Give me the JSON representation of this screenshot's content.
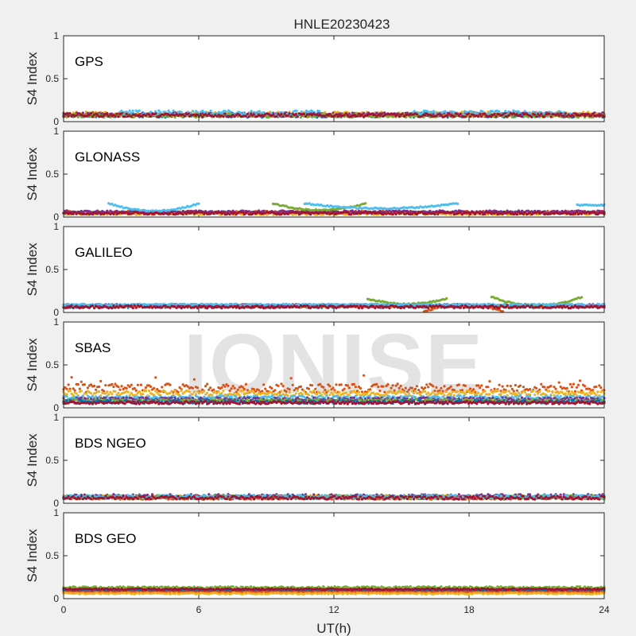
{
  "chart_data": {
    "type": "scatter",
    "title": "HNLE20230423",
    "xlabel": "UT(h)",
    "ylabel": "S4 Index",
    "xlim": [
      0,
      24
    ],
    "ylim": [
      0,
      1
    ],
    "xticks": [
      "0",
      "6",
      "12",
      "18",
      "24"
    ],
    "yticks": [
      "0",
      "0.5",
      "1"
    ],
    "watermark": "IONISE",
    "grid": false,
    "panels": [
      {
        "label": "GPS",
        "series": [
          {
            "color": "#0072BD",
            "segments": [
              {
                "x0": 0,
                "x1": 24,
                "y": 0.07,
                "amp": 0.02
              }
            ]
          },
          {
            "color": "#D95319",
            "segments": [
              {
                "x0": 0,
                "x1": 24,
                "y": 0.08,
                "amp": 0.02
              }
            ]
          },
          {
            "color": "#EDB120",
            "segments": [
              {
                "x0": 0,
                "x1": 24,
                "y": 0.09,
                "amp": 0.025
              }
            ]
          },
          {
            "color": "#7E2F8E",
            "segments": [
              {
                "x0": 0,
                "x1": 24,
                "y": 0.085,
                "amp": 0.02
              }
            ]
          },
          {
            "color": "#77AC30",
            "segments": [
              {
                "x0": 0,
                "x1": 24,
                "y": 0.07,
                "amp": 0.02
              }
            ]
          },
          {
            "color": "#4DBEEE",
            "segments": [
              {
                "x0": 2.5,
                "x1": 11.5,
                "y": 0.1,
                "amp": 0.03
              },
              {
                "x0": 15.5,
                "x1": 22.5,
                "y": 0.1,
                "amp": 0.03
              }
            ]
          },
          {
            "color": "#A2142F",
            "segments": [
              {
                "x0": 0,
                "x1": 24,
                "y": 0.075,
                "amp": 0.02
              }
            ]
          }
        ]
      },
      {
        "label": "GLONASS",
        "series": [
          {
            "color": "#0072BD",
            "segments": [
              {
                "x0": 0,
                "x1": 24,
                "y": 0.05,
                "amp": 0.015
              }
            ]
          },
          {
            "color": "#D95319",
            "segments": [
              {
                "x0": 0,
                "x1": 24,
                "y": 0.055,
                "amp": 0.015
              }
            ]
          },
          {
            "color": "#EDB120",
            "segments": [
              {
                "x0": 0,
                "x1": 24,
                "y": 0.04,
                "amp": 0.015
              }
            ]
          },
          {
            "color": "#7E2F8E",
            "segments": [
              {
                "x0": 0,
                "x1": 24,
                "y": 0.06,
                "amp": 0.015
              }
            ]
          },
          {
            "color": "#77AC30",
            "segments": [
              {
                "x0": 9.3,
                "x1": 13.4,
                "y": 0.08,
                "arc": 0.08
              }
            ]
          },
          {
            "color": "#4DBEEE",
            "segments": [
              {
                "x0": 2.0,
                "x1": 6.0,
                "y": 0.07,
                "arc": 0.09
              },
              {
                "x0": 10.7,
                "x1": 17.5,
                "y": 0.1,
                "arc": 0.06
              },
              {
                "x0": 22.8,
                "x1": 24,
                "y": 0.14,
                "arc": 0.0
              }
            ]
          },
          {
            "color": "#A2142F",
            "segments": [
              {
                "x0": 0,
                "x1": 24,
                "y": 0.045,
                "amp": 0.015
              }
            ]
          }
        ]
      },
      {
        "label": "GALILEO",
        "series": [
          {
            "color": "#0072BD",
            "segments": [
              {
                "x0": 0,
                "x1": 24,
                "y": 0.07,
                "amp": 0.015
              }
            ]
          },
          {
            "color": "#D95319",
            "segments": [
              {
                "x0": 0,
                "x1": 24,
                "y": 0.08,
                "amp": 0.015
              },
              {
                "x0": 16,
                "x1": 19.5,
                "y": 0.09,
                "arc": -0.08
              }
            ]
          },
          {
            "color": "#EDB120",
            "segments": [
              {
                "x0": 0,
                "x1": 24,
                "y": 0.075,
                "amp": 0.015
              }
            ]
          },
          {
            "color": "#7E2F8E",
            "segments": [
              {
                "x0": 0,
                "x1": 24,
                "y": 0.08,
                "amp": 0.015
              }
            ]
          },
          {
            "color": "#77AC30",
            "segments": [
              {
                "x0": 13.5,
                "x1": 17.0,
                "y": 0.1,
                "arc": 0.06
              },
              {
                "x0": 19.0,
                "x1": 23.0,
                "y": 0.08,
                "arc": 0.1
              }
            ]
          },
          {
            "color": "#4DBEEE",
            "segments": [
              {
                "x0": 0,
                "x1": 24,
                "y": 0.09,
                "amp": 0.01
              }
            ]
          },
          {
            "color": "#A2142F",
            "segments": [
              {
                "x0": 0,
                "x1": 24,
                "y": 0.065,
                "amp": 0.015
              }
            ]
          }
        ]
      },
      {
        "label": "SBAS",
        "series": [
          {
            "color": "#D95319",
            "segments": [
              {
                "x0": 0,
                "x1": 24,
                "y": 0.23,
                "amp": 0.05
              }
            ]
          },
          {
            "color": "#EDB120",
            "segments": [
              {
                "x0": 0,
                "x1": 24,
                "y": 0.17,
                "amp": 0.03
              }
            ]
          },
          {
            "color": "#4DBEEE",
            "segments": [
              {
                "x0": 0,
                "x1": 24,
                "y": 0.12,
                "amp": 0.02
              }
            ]
          },
          {
            "color": "#7E2F8E",
            "segments": [
              {
                "x0": 0,
                "x1": 24,
                "y": 0.1,
                "amp": 0.02
              }
            ]
          },
          {
            "color": "#77AC30",
            "segments": [
              {
                "x0": 0,
                "x1": 24,
                "y": 0.085,
                "amp": 0.015
              }
            ]
          },
          {
            "color": "#0072BD",
            "segments": [
              {
                "x0": 0,
                "x1": 24,
                "y": 0.07,
                "amp": 0.02
              }
            ]
          },
          {
            "color": "#A2142F",
            "segments": [
              {
                "x0": 0,
                "x1": 24,
                "y": 0.06,
                "amp": 0.015
              }
            ]
          }
        ]
      },
      {
        "label": "BDS NGEO",
        "series": [
          {
            "color": "#0072BD",
            "segments": [
              {
                "x0": 0,
                "x1": 24,
                "y": 0.07,
                "amp": 0.02
              }
            ]
          },
          {
            "color": "#D95319",
            "segments": [
              {
                "x0": 0,
                "x1": 24,
                "y": 0.06,
                "amp": 0.015
              }
            ]
          },
          {
            "color": "#EDB120",
            "segments": [
              {
                "x0": 0,
                "x1": 24,
                "y": 0.075,
                "amp": 0.02
              }
            ]
          },
          {
            "color": "#7E2F8E",
            "segments": [
              {
                "x0": 0,
                "x1": 24,
                "y": 0.08,
                "amp": 0.025
              }
            ]
          },
          {
            "color": "#77AC30",
            "segments": [
              {
                "x0": 0,
                "x1": 24,
                "y": 0.07,
                "amp": 0.02
              }
            ]
          },
          {
            "color": "#4DBEEE",
            "segments": [
              {
                "x0": 0,
                "x1": 24,
                "y": 0.075,
                "amp": 0.02
              }
            ]
          },
          {
            "color": "#A2142F",
            "segments": [
              {
                "x0": 0,
                "x1": 24,
                "y": 0.065,
                "amp": 0.02
              }
            ]
          }
        ]
      },
      {
        "label": "BDS GEO",
        "series": [
          {
            "color": "#77AC30",
            "segments": [
              {
                "x0": 0,
                "x1": 24,
                "y": 0.13,
                "amp": 0.012
              }
            ]
          },
          {
            "color": "#7E2F8E",
            "segments": [
              {
                "x0": 0,
                "x1": 24,
                "y": 0.1,
                "amp": 0.01
              }
            ]
          },
          {
            "color": "#0072BD",
            "segments": [
              {
                "x0": 0,
                "x1": 24,
                "y": 0.09,
                "amp": 0.008
              }
            ]
          },
          {
            "color": "#D95319",
            "segments": [
              {
                "x0": 0,
                "x1": 24,
                "y": 0.075,
                "amp": 0.008
              }
            ]
          },
          {
            "color": "#EDB120",
            "segments": [
              {
                "x0": 0,
                "x1": 24,
                "y": 0.06,
                "amp": 0.008
              }
            ]
          },
          {
            "color": "#A2142F",
            "segments": [
              {
                "x0": 0,
                "x1": 24,
                "y": 0.11,
                "amp": 0.008
              }
            ]
          }
        ]
      }
    ]
  }
}
